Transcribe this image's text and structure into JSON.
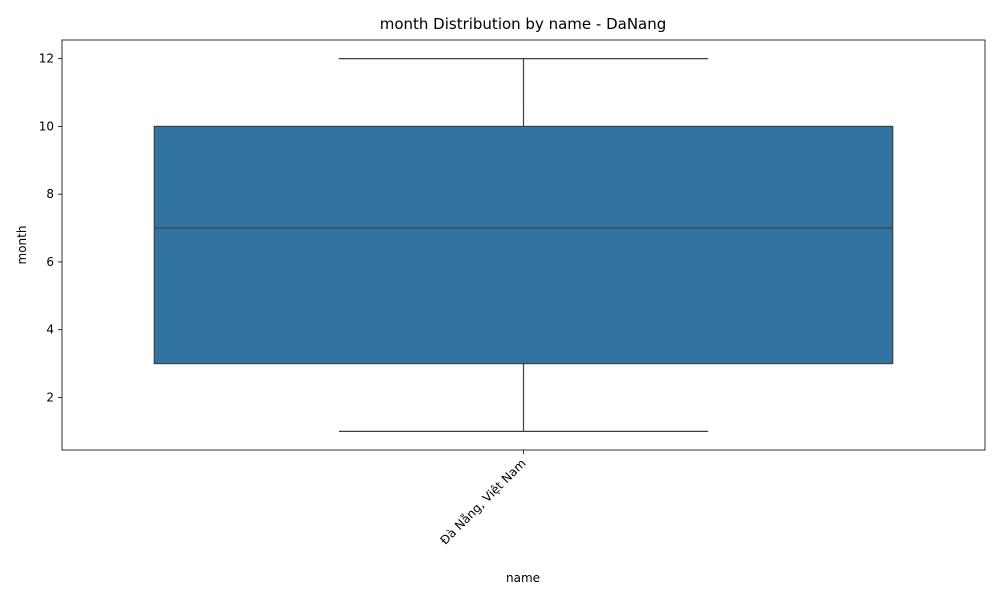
{
  "chart_data": {
    "type": "box",
    "title": "month Distribution by name - DaNang",
    "xlabel": "name",
    "ylabel": "month",
    "categories": [
      "Đà Nẵng, Việt Nam"
    ],
    "boxes": [
      {
        "category": "Đà Nẵng, Việt Nam",
        "whisker_low": 1,
        "q1": 3,
        "median": 7,
        "q3": 10,
        "whisker_high": 12
      }
    ],
    "ylim": [
      0.45,
      12.55
    ],
    "yticks": [
      2,
      4,
      6,
      8,
      10,
      12
    ],
    "grid": false,
    "colors": {
      "box_fill": "#3274a1",
      "line": "#3f3f3f"
    }
  }
}
